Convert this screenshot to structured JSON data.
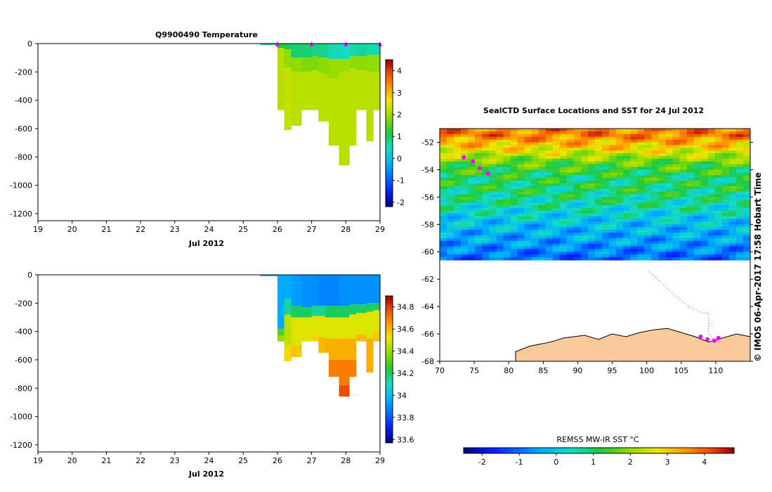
{
  "colors": {
    "antarctica": "#fac99b",
    "float_marker": "#ff00ff",
    "no_data": "#ffffff"
  },
  "copyright_text": "© IMOS 06-Apr-2017 17:58 Hobart Time",
  "chart_data": [
    {
      "type": "heatmap",
      "title": "Q9900490  Temperature",
      "xlabel": "Jul 2012",
      "ylabel": "",
      "xlim": [
        19,
        29
      ],
      "ylim": [
        -1250,
        0
      ],
      "x_ticks": [
        "19",
        "20",
        "21",
        "22",
        "23",
        "24",
        "25",
        "26",
        "27",
        "28",
        "29"
      ],
      "y_ticks": [
        "0",
        "-200",
        "-400",
        "-600",
        "-800",
        "-1000",
        "-1200"
      ],
      "colorbar": {
        "min": -2.2,
        "max": 4.5,
        "ticks": [
          "-2",
          "-1",
          "0",
          "1",
          "2",
          "3",
          "4"
        ]
      },
      "profile_markers_x": [
        26,
        27,
        28,
        29
      ],
      "profiles": [
        {
          "x0": 25.5,
          "x1": 26.0,
          "bottom": -10,
          "levels": [
            [
              0,
              0.9
            ]
          ]
        },
        {
          "x0": 26.0,
          "x1": 26.2,
          "bottom": -470,
          "levels": [
            [
              0,
              1.2
            ],
            [
              -30,
              2.2
            ]
          ]
        },
        {
          "x0": 26.2,
          "x1": 26.4,
          "bottom": -610,
          "levels": [
            [
              0,
              1.0
            ],
            [
              -40,
              1.9
            ],
            [
              -170,
              2.3
            ]
          ]
        },
        {
          "x0": 26.4,
          "x1": 26.7,
          "bottom": -580,
          "levels": [
            [
              0,
              0.9
            ],
            [
              -100,
              1.9
            ],
            [
              -200,
              2.2
            ]
          ]
        },
        {
          "x0": 26.7,
          "x1": 27.0,
          "bottom": -470,
          "levels": [
            [
              0,
              0.9
            ],
            [
              -100,
              1.8
            ],
            [
              -200,
              2.2
            ]
          ]
        },
        {
          "x0": 27.0,
          "x1": 27.2,
          "bottom": -470,
          "levels": [
            [
              0,
              0.8
            ],
            [
              -90,
              1.8
            ],
            [
              -190,
              2.2
            ]
          ]
        },
        {
          "x0": 27.2,
          "x1": 27.4,
          "bottom": -550,
          "levels": [
            [
              0,
              0.8
            ],
            [
              -100,
              1.9
            ],
            [
              -210,
              2.2
            ]
          ]
        },
        {
          "x0": 27.4,
          "x1": 27.5,
          "bottom": -550,
          "levels": [
            [
              0,
              0.7
            ],
            [
              -100,
              1.9
            ],
            [
              -220,
              2.2
            ]
          ]
        },
        {
          "x0": 27.5,
          "x1": 27.8,
          "bottom": -720,
          "levels": [
            [
              0,
              0.6
            ],
            [
              -110,
              2.0
            ],
            [
              -250,
              2.2
            ]
          ]
        },
        {
          "x0": 27.8,
          "x1": 28.1,
          "bottom": -860,
          "levels": [
            [
              0,
              0.5
            ],
            [
              -110,
              2.0
            ],
            [
              -200,
              2.2
            ]
          ]
        },
        {
          "x0": 28.1,
          "x1": 28.3,
          "bottom": -720,
          "levels": [
            [
              0,
              0.6
            ],
            [
              -90,
              1.9
            ],
            [
              -180,
              2.2
            ]
          ]
        },
        {
          "x0": 28.3,
          "x1": 28.6,
          "bottom": -470,
          "levels": [
            [
              0,
              0.7
            ],
            [
              -90,
              1.9
            ],
            [
              -190,
              2.2
            ]
          ]
        },
        {
          "x0": 28.6,
          "x1": 28.8,
          "bottom": -690,
          "levels": [
            [
              0,
              0.6
            ],
            [
              -80,
              1.9
            ],
            [
              -200,
              2.2
            ]
          ]
        },
        {
          "x0": 28.8,
          "x1": 29.0,
          "bottom": -470,
          "levels": [
            [
              0,
              0.6
            ],
            [
              -80,
              1.9
            ],
            [
              -200,
              2.2
            ]
          ]
        }
      ]
    },
    {
      "type": "heatmap",
      "title": "",
      "xlabel": "Jul 2012",
      "ylabel": "",
      "xlim": [
        19,
        29
      ],
      "ylim": [
        -1250,
        0
      ],
      "x_ticks": [
        "19",
        "20",
        "21",
        "22",
        "23",
        "24",
        "25",
        "26",
        "27",
        "28",
        "29"
      ],
      "y_ticks": [
        "0",
        "-200",
        "-400",
        "-600",
        "-800",
        "-1000",
        "-1200"
      ],
      "colorbar": {
        "min": 33.57,
        "max": 34.9,
        "ticks": [
          "33.6",
          "33.8",
          "34",
          "34.2",
          "34.4",
          "34.6",
          "34.8"
        ]
      },
      "profiles": [
        {
          "x0": 25.5,
          "x1": 26.0,
          "bottom": -10,
          "levels": [
            [
              0,
              33.98
            ]
          ]
        },
        {
          "x0": 26.0,
          "x1": 26.2,
          "bottom": -470,
          "levels": [
            [
              0,
              33.95
            ],
            [
              -380,
              34.3
            ],
            [
              -430,
              34.4
            ]
          ]
        },
        {
          "x0": 26.2,
          "x1": 26.4,
          "bottom": -610,
          "levels": [
            [
              0,
              33.95
            ],
            [
              -170,
              34.15
            ],
            [
              -280,
              34.45
            ],
            [
              -500,
              34.55
            ]
          ]
        },
        {
          "x0": 26.4,
          "x1": 26.7,
          "bottom": -580,
          "levels": [
            [
              0,
              33.92
            ],
            [
              -220,
              34.2
            ],
            [
              -300,
              34.5
            ],
            [
              -500,
              34.58
            ]
          ]
        },
        {
          "x0": 26.7,
          "x1": 27.0,
          "bottom": -470,
          "levels": [
            [
              0,
              33.9
            ],
            [
              -230,
              34.2
            ],
            [
              -300,
              34.5
            ]
          ]
        },
        {
          "x0": 27.0,
          "x1": 27.2,
          "bottom": -470,
          "levels": [
            [
              0,
              33.9
            ],
            [
              -220,
              34.15
            ],
            [
              -290,
              34.5
            ],
            [
              -420,
              34.56
            ]
          ]
        },
        {
          "x0": 27.2,
          "x1": 27.4,
          "bottom": -550,
          "levels": [
            [
              0,
              33.88
            ],
            [
              -220,
              34.15
            ],
            [
              -290,
              34.5
            ],
            [
              -440,
              34.6
            ]
          ]
        },
        {
          "x0": 27.4,
          "x1": 27.5,
          "bottom": -550,
          "levels": [
            [
              0,
              33.88
            ],
            [
              -220,
              34.2
            ],
            [
              -300,
              34.5
            ],
            [
              -450,
              34.62
            ]
          ]
        },
        {
          "x0": 27.5,
          "x1": 27.8,
          "bottom": -720,
          "levels": [
            [
              0,
              33.88
            ],
            [
              -220,
              34.2
            ],
            [
              -300,
              34.5
            ],
            [
              -450,
              34.62
            ],
            [
              -600,
              34.7
            ]
          ]
        },
        {
          "x0": 27.8,
          "x1": 28.1,
          "bottom": -860,
          "levels": [
            [
              0,
              33.9
            ],
            [
              -220,
              34.2
            ],
            [
              -300,
              34.5
            ],
            [
              -450,
              34.62
            ],
            [
              -600,
              34.7
            ],
            [
              -780,
              34.78
            ]
          ]
        },
        {
          "x0": 28.1,
          "x1": 28.3,
          "bottom": -720,
          "levels": [
            [
              0,
              33.9
            ],
            [
              -210,
              34.2
            ],
            [
              -280,
              34.5
            ],
            [
              -450,
              34.62
            ],
            [
              -600,
              34.7
            ]
          ]
        },
        {
          "x0": 28.3,
          "x1": 28.6,
          "bottom": -470,
          "levels": [
            [
              0,
              33.9
            ],
            [
              -210,
              34.2
            ],
            [
              -270,
              34.5
            ],
            [
              -420,
              34.6
            ]
          ]
        },
        {
          "x0": 28.6,
          "x1": 28.8,
          "bottom": -690,
          "levels": [
            [
              0,
              33.9
            ],
            [
              -200,
              34.2
            ],
            [
              -260,
              34.5
            ],
            [
              -450,
              34.62
            ]
          ]
        },
        {
          "x0": 28.8,
          "x1": 29.0,
          "bottom": -470,
          "levels": [
            [
              0,
              33.9
            ],
            [
              -200,
              34.2
            ],
            [
              -250,
              34.5
            ],
            [
              -400,
              34.58
            ]
          ]
        }
      ]
    },
    {
      "type": "heatmap",
      "title": "SealCTD Surface Locations and SST for 24 Jul 2012",
      "xlabel": "",
      "ylabel": "",
      "xlim": [
        70,
        115
      ],
      "ylim": [
        -68,
        -51
      ],
      "x_ticks": [
        "70",
        "75",
        "80",
        "85",
        "90",
        "95",
        "100",
        "105",
        "110"
      ],
      "y_ticks": [
        "-52",
        "-54",
        "-56",
        "-58",
        "-60",
        "-62",
        "-64",
        "-66",
        "-68"
      ],
      "colorbar": {
        "label": "REMSS MW-IR SST °C",
        "min": -2.5,
        "max": 4.8,
        "ticks": [
          "-2",
          "-1",
          "0",
          "1",
          "2",
          "3",
          "4"
        ]
      },
      "sst_rows": [
        {
          "lat": -51.5,
          "sst": 3.7
        },
        {
          "lat": -52.5,
          "sst": 2.8
        },
        {
          "lat": -53.5,
          "sst": 1.6
        },
        {
          "lat": -54.5,
          "sst": 1.0
        },
        {
          "lat": -55.5,
          "sst": 0.9
        },
        {
          "lat": -56.5,
          "sst": 0.6
        },
        {
          "lat": -57.5,
          "sst": 0.1
        },
        {
          "lat": -58.5,
          "sst": -0.3
        },
        {
          "lat": -59.5,
          "sst": -0.6
        },
        {
          "lat": -60.3,
          "sst": -1.0
        }
      ],
      "ice_edge_lat": -60.6,
      "float_positions": [
        {
          "lon": 73.5,
          "lat": -53.1
        },
        {
          "lon": 74.8,
          "lat": -53.4
        },
        {
          "lon": 75.8,
          "lat": -53.9
        },
        {
          "lon": 77.0,
          "lat": -54.3
        },
        {
          "lon": 107.8,
          "lat": -66.2
        },
        {
          "lon": 108.8,
          "lat": -66.4
        },
        {
          "lon": 109.8,
          "lat": -66.5
        },
        {
          "lon": 110.4,
          "lat": -66.3
        }
      ],
      "float_track": [
        {
          "lon": 100.3,
          "lat": -61.4
        },
        {
          "lon": 103.0,
          "lat": -62.7
        },
        {
          "lon": 106.0,
          "lat": -64.0
        },
        {
          "lon": 107.8,
          "lat": -64.4
        },
        {
          "lon": 109.0,
          "lat": -64.5
        },
        {
          "lon": 108.9,
          "lat": -65.9
        },
        {
          "lon": 109.8,
          "lat": -66.5
        }
      ]
    }
  ]
}
